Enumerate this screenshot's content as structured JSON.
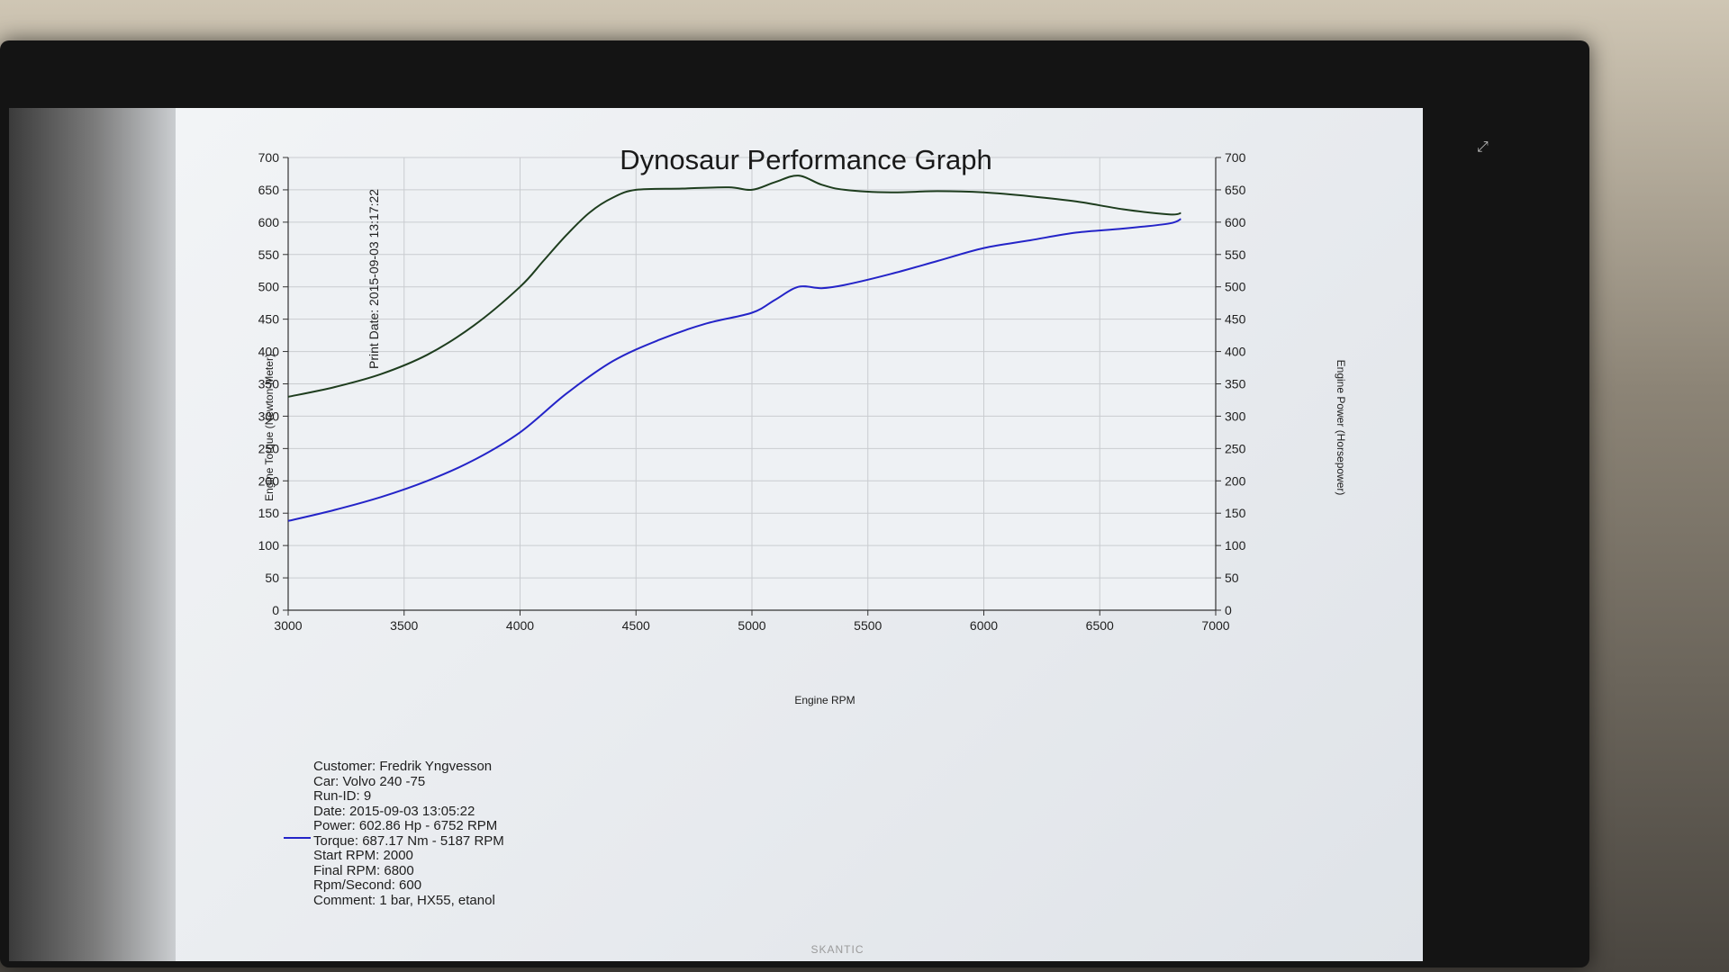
{
  "chart_data": {
    "type": "line",
    "title": "Dynosaur Performance Graph",
    "xlabel": "Engine RPM",
    "ylabel_left": "Engine Torque (Newton-Meter)",
    "ylabel_right": "Engine Power (Horsepower)",
    "xlim": [
      3000,
      7000
    ],
    "ylim_left": [
      0,
      700
    ],
    "ylim_right": [
      0,
      700
    ],
    "x_ticks": [
      3000,
      3500,
      4000,
      4500,
      5000,
      5500,
      6000,
      6500,
      7000
    ],
    "y_ticks": [
      0,
      50,
      100,
      150,
      200,
      250,
      300,
      350,
      400,
      450,
      500,
      550,
      600,
      650,
      700
    ],
    "grid": true,
    "series": [
      {
        "name": "Torque",
        "axis": "left",
        "color": "#1e3d1e",
        "x": [
          3000,
          3200,
          3400,
          3600,
          3800,
          4000,
          4100,
          4200,
          4300,
          4400,
          4500,
          4700,
          4900,
          5000,
          5100,
          5200,
          5300,
          5400,
          5600,
          5800,
          6000,
          6200,
          6400,
          6600,
          6800,
          6850
        ],
        "values": [
          330,
          345,
          365,
          395,
          440,
          500,
          540,
          580,
          615,
          638,
          650,
          652,
          654,
          650,
          662,
          672,
          658,
          650,
          646,
          648,
          646,
          640,
          632,
          620,
          612,
          614
        ]
      },
      {
        "name": "Power",
        "axis": "right",
        "color": "#2424c8",
        "x": [
          3000,
          3200,
          3400,
          3600,
          3800,
          4000,
          4200,
          4400,
          4600,
          4800,
          5000,
          5100,
          5200,
          5300,
          5400,
          5600,
          5800,
          6000,
          6200,
          6400,
          6600,
          6800,
          6850
        ],
        "values": [
          138,
          155,
          175,
          200,
          232,
          275,
          335,
          385,
          418,
          443,
          460,
          480,
          500,
          498,
          503,
          520,
          540,
          560,
          572,
          584,
          590,
          598,
          605
        ]
      }
    ]
  },
  "print_date": "Print Date: 2015-09-03 13:17:22",
  "info": {
    "customer": "Customer: Fredrik Yngvesson",
    "car": "Car: Volvo 240 -75",
    "run_id": "Run-ID: 9",
    "date": "Date: 2015-09-03 13:05:22",
    "power": "Power: 602.86 Hp - 6752 RPM",
    "torque": "Torque: 687.17 Nm - 5187 RPM",
    "start_rpm": "Start RPM: 2000",
    "final_rpm": "Final RPM: 6800",
    "rpm_second": "Rpm/Second: 600",
    "comment": "Comment: 1 bar, HX55, etanol"
  },
  "monitor_brand": "SKANTIC",
  "fullscreen_icon": "fullscreen-icon"
}
